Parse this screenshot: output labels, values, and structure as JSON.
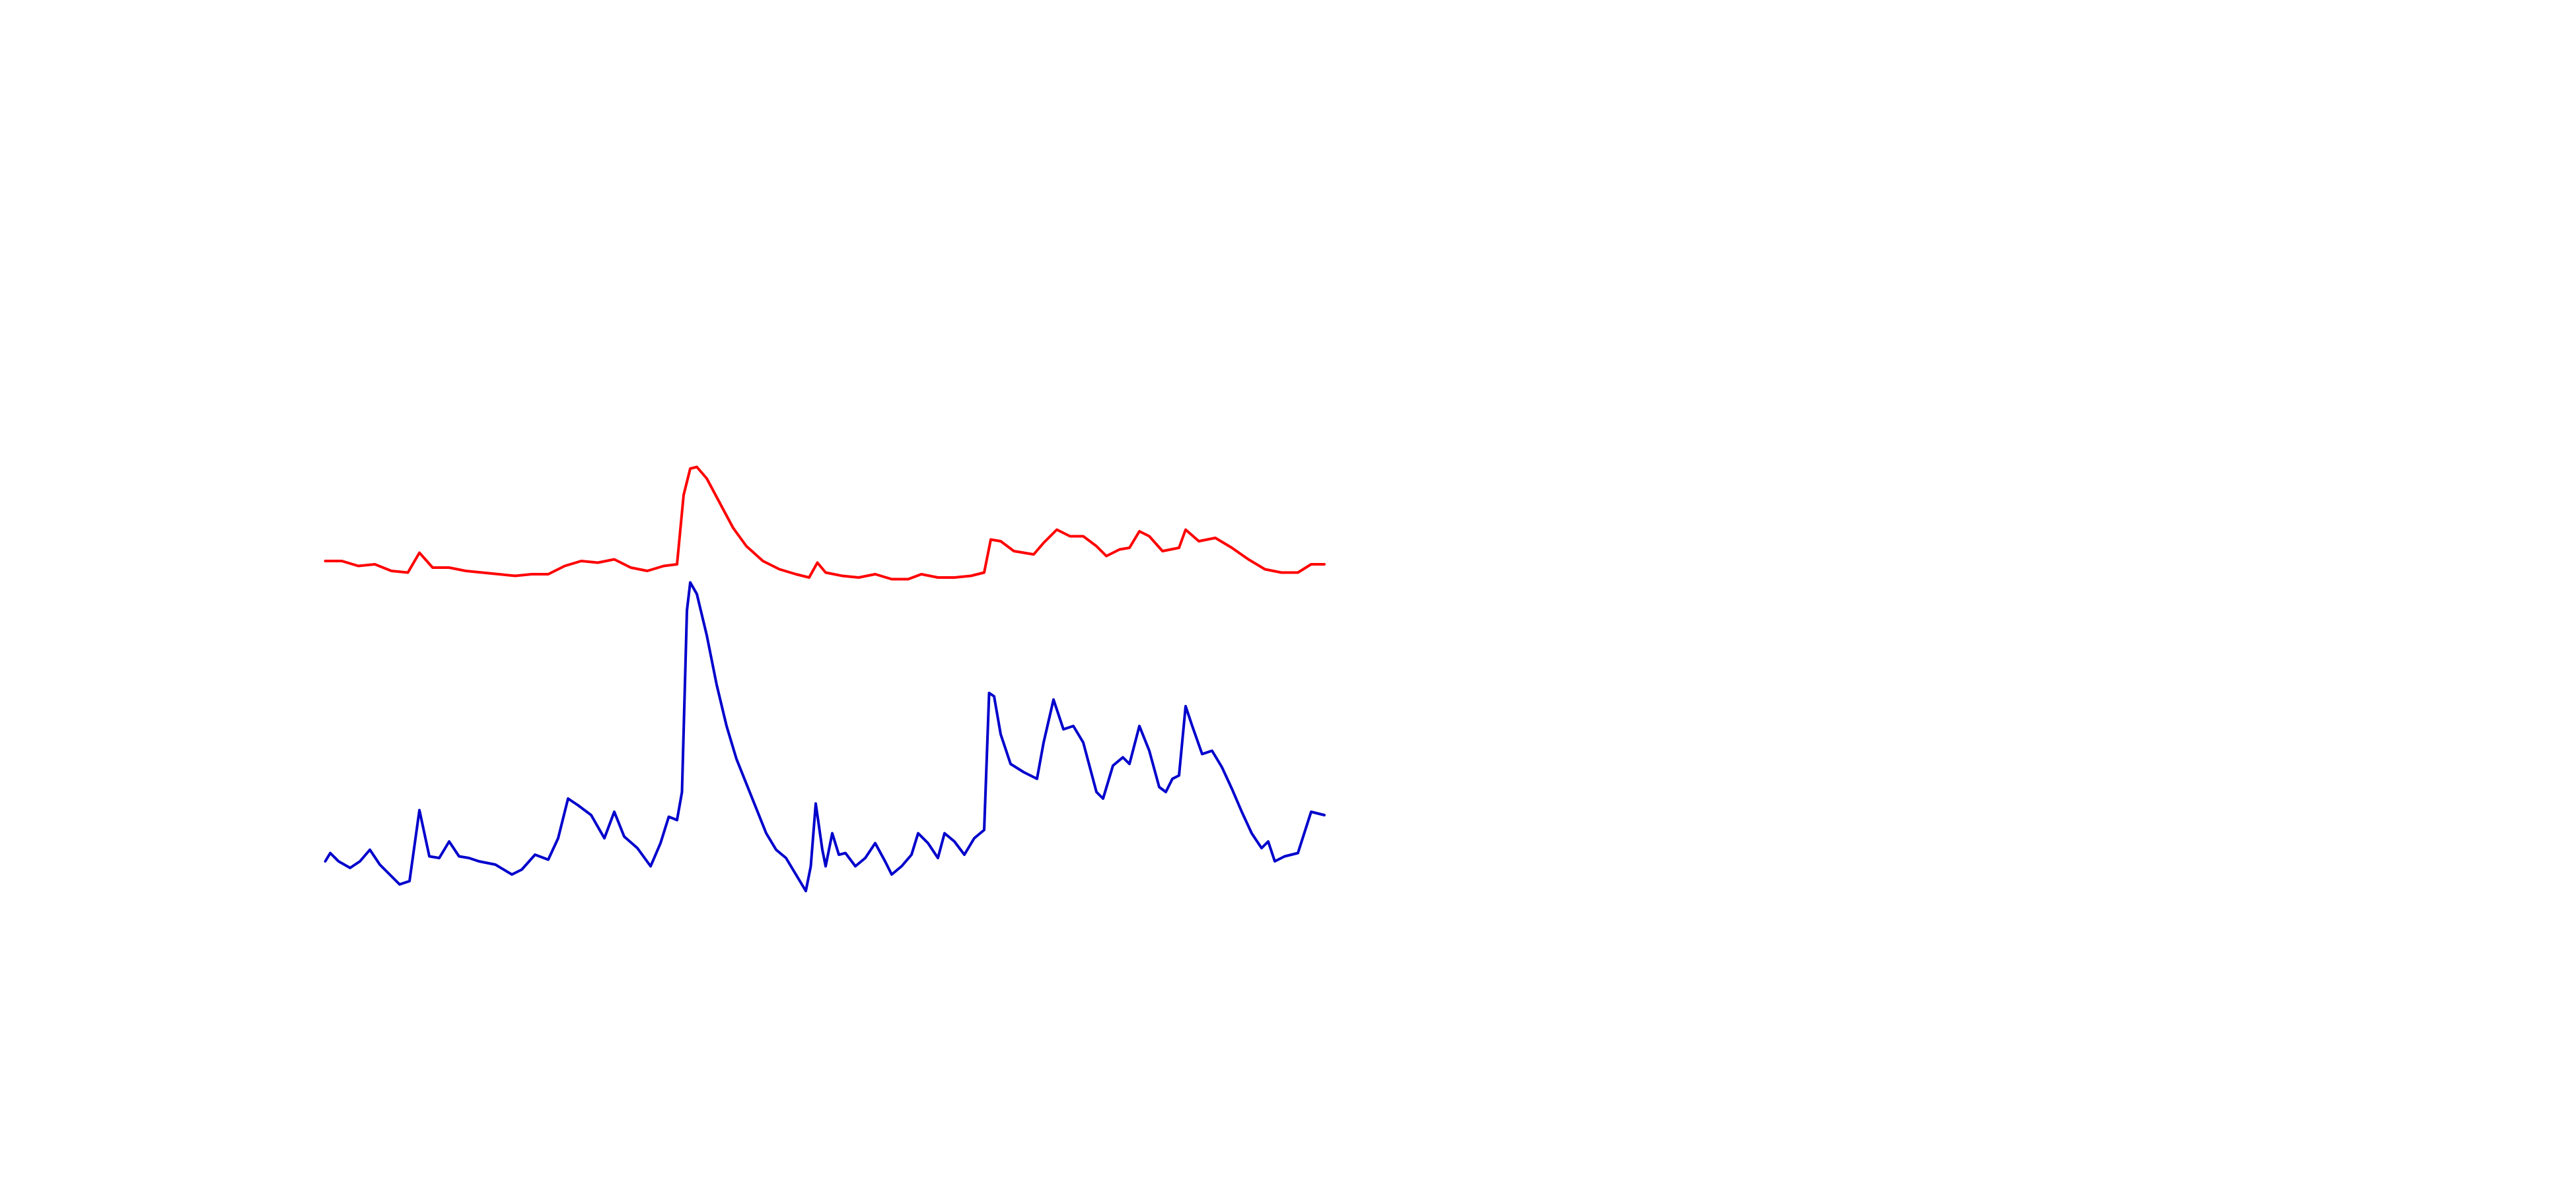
{
  "chart_data": {
    "type": "line",
    "xlim": [
      0,
      1560
    ],
    "ylim": [
      0,
      720
    ],
    "series": [
      {
        "color": "#ff0000",
        "x": [
          197,
          207,
          217,
          227,
          237,
          247,
          254,
          262,
          272,
          282,
          292,
          302,
          312,
          322,
          332,
          342,
          352,
          362,
          372,
          382,
          392,
          402,
          410,
          414,
          418,
          422,
          428,
          436,
          444,
          452,
          462,
          472,
          482,
          490,
          495,
          500,
          510,
          520,
          530,
          540,
          550,
          558,
          568,
          578,
          588,
          596,
          600,
          606,
          614,
          626,
          632,
          640,
          648,
          656,
          664,
          670,
          678,
          684,
          690,
          696,
          704,
          714,
          718,
          726,
          736,
          746,
          756,
          766,
          776,
          786,
          794,
          802
        ],
        "values": [
          380,
          380,
          377,
          378,
          374,
          373,
          385,
          376,
          376,
          374,
          373,
          372,
          371,
          372,
          372,
          377,
          380,
          379,
          381,
          376,
          374,
          377,
          378,
          420,
          436,
          437,
          430,
          415,
          400,
          389,
          380,
          375,
          372,
          370,
          379,
          373,
          371,
          370,
          372,
          369,
          369,
          372,
          370,
          370,
          371,
          373,
          393,
          392,
          386,
          384,
          391,
          399,
          395,
          395,
          389,
          383,
          387,
          388,
          398,
          395,
          386,
          388,
          399,
          392,
          394,
          388,
          381,
          375,
          373,
          373,
          378,
          378
        ]
      },
      {
        "color": "#0000cc",
        "x": [
          197,
          200,
          205,
          212,
          218,
          224,
          230,
          236,
          242,
          248,
          254,
          260,
          266,
          272,
          278,
          284,
          290,
          300,
          310,
          316,
          324,
          332,
          338,
          344,
          350,
          358,
          366,
          372,
          378,
          386,
          394,
          400,
          405,
          410,
          413,
          416,
          418,
          422,
          428,
          434,
          440,
          446,
          452,
          458,
          464,
          470,
          476,
          482,
          488,
          491,
          494,
          498,
          500,
          504,
          508,
          512,
          518,
          524,
          530,
          536,
          540,
          546,
          552,
          556,
          562,
          568,
          572,
          578,
          584,
          590,
          596,
          599,
          602,
          606,
          612,
          620,
          628,
          632,
          638,
          644,
          650,
          656,
          664,
          668,
          674,
          680,
          684,
          690,
          696,
          702,
          706,
          710,
          714,
          718,
          722,
          728,
          734,
          740,
          746,
          752,
          758,
          764,
          768,
          772,
          778,
          786,
          794,
          802
        ],
        "values": [
          198,
          203,
          198,
          194,
          198,
          205,
          196,
          190,
          184,
          186,
          229,
          201,
          200,
          210,
          201,
          200,
          198,
          196,
          190,
          193,
          202,
          199,
          212,
          236,
          232,
          226,
          212,
          228,
          213,
          206,
          195,
          209,
          225,
          223,
          240,
          350,
          367,
          360,
          335,
          305,
          280,
          260,
          245,
          230,
          215,
          205,
          200,
          190,
          180,
          195,
          233,
          205,
          195,
          215,
          202,
          203,
          195,
          200,
          209,
          198,
          190,
          195,
          202,
          215,
          209,
          200,
          215,
          210,
          202,
          212,
          217,
          300,
          298,
          275,
          257,
          252,
          248,
          270,
          296,
          278,
          280,
          270,
          240,
          236,
          256,
          261,
          257,
          280,
          265,
          243,
          240,
          248,
          250,
          292,
          280,
          263,
          265,
          255,
          242,
          228,
          215,
          206,
          210,
          198,
          201,
          203,
          228,
          226
        ]
      }
    ]
  }
}
